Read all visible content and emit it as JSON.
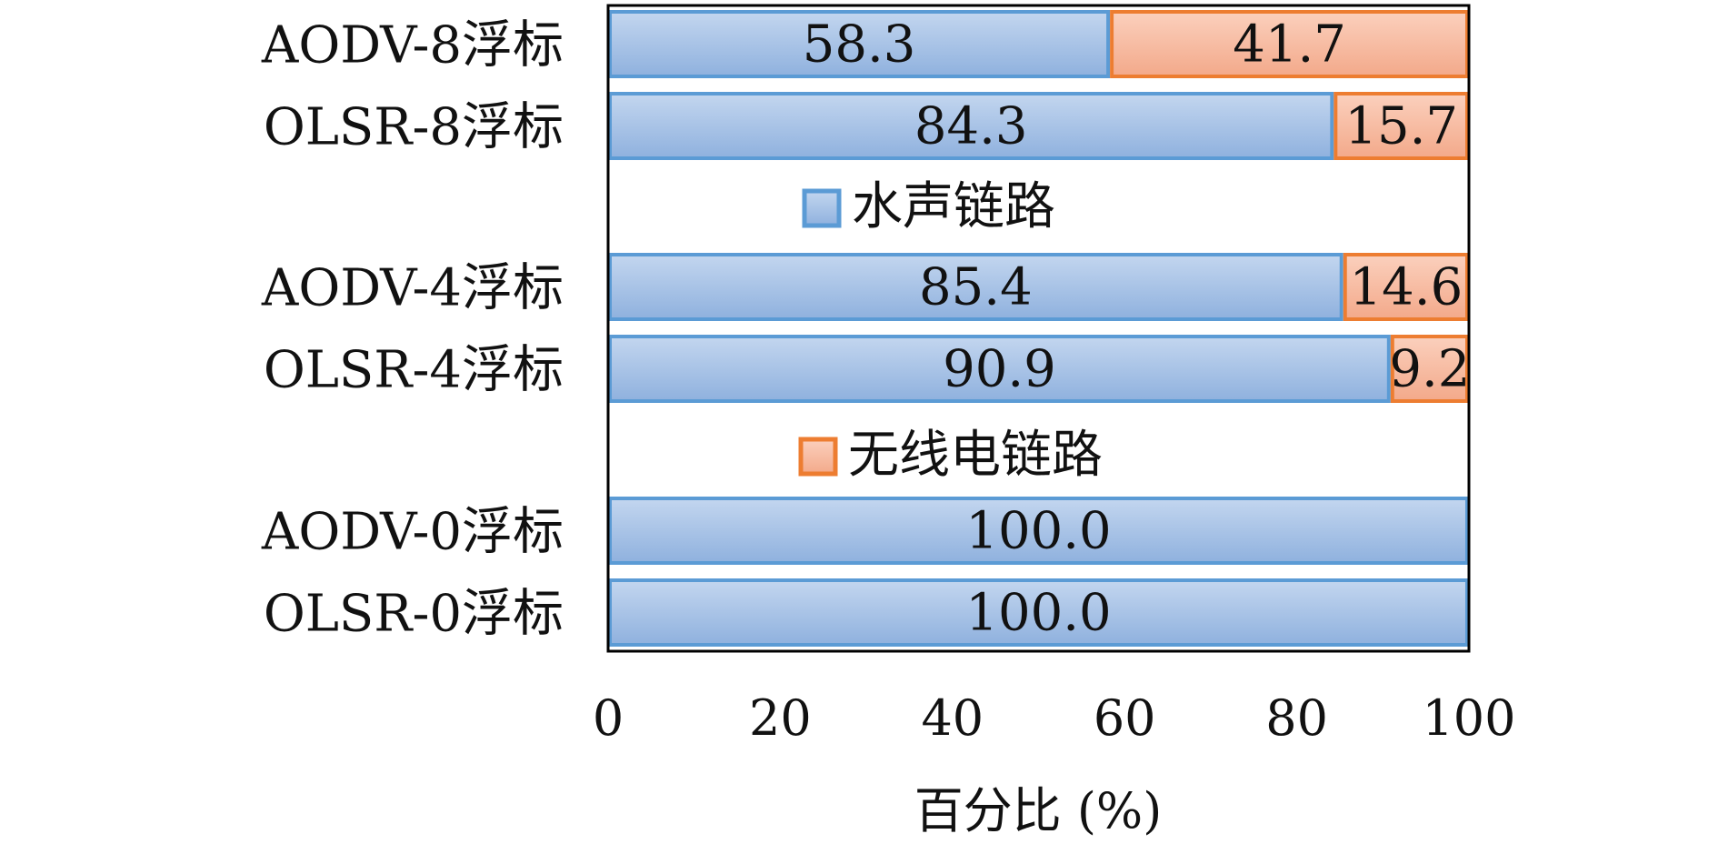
{
  "chart_data": {
    "type": "bar",
    "orientation": "horizontal",
    "stacked": true,
    "categories": [
      "AODV-8浮标",
      "OLSR-8浮标",
      "AODV-4浮标",
      "OLSR-4浮标",
      "AODV-0浮标",
      "OLSR-0浮标"
    ],
    "series": [
      {
        "name": "水声链路",
        "values": [
          58.3,
          84.3,
          85.4,
          90.9,
          100.0,
          100.0
        ],
        "labels": [
          "58.3",
          "84.3",
          "85.4",
          "90.9",
          "100.0",
          "100.0"
        ],
        "fill_top": "#c3d6ef",
        "fill_bottom": "#8fb1de",
        "stroke": "#5b9bd5"
      },
      {
        "name": "无线电链路",
        "values": [
          41.7,
          15.7,
          14.6,
          9.2,
          0,
          0
        ],
        "labels": [
          "41.7",
          "15.7",
          "14.6",
          "9.2",
          "",
          ""
        ],
        "fill_top": "#fbd0bd",
        "fill_bottom": "#f3a98a",
        "stroke": "#ed7d31"
      }
    ],
    "xlabel": "百分比 (%)",
    "ylabel": "",
    "xlim": [
      0,
      100
    ],
    "xticks": [
      "0",
      "20",
      "40",
      "60",
      "80",
      "100"
    ],
    "grid": false,
    "legend_position": "inside, between bar groups"
  }
}
